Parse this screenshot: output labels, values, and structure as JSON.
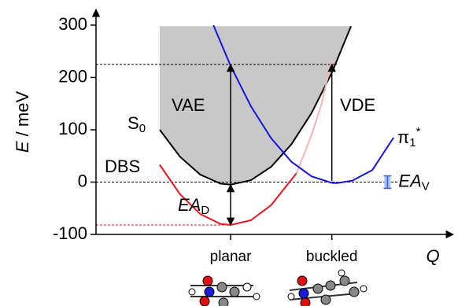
{
  "chart_data": {
    "type": "line",
    "y_label": {
      "text": "E",
      "rest": " / meV"
    },
    "x_label": "Q",
    "xlim": [
      -1.33,
      2.2
    ],
    "ylim": [
      -100,
      330
    ],
    "yticks": [
      -100,
      0,
      100,
      200,
      300
    ],
    "xticks": [
      {
        "value": 0,
        "label": "planar"
      },
      {
        "value": 1,
        "label": "buckled"
      }
    ],
    "series": [
      {
        "label": {
          "text": "S",
          "sub": "0"
        },
        "color": "#000000",
        "fill": "#c8c8c8",
        "x": [
          -0.7,
          -0.5,
          -0.3,
          -0.1,
          0,
          0.2,
          0.4,
          0.6,
          0.8,
          1.0,
          1.19
        ],
        "values": [
          100,
          48.5,
          14.3,
          -2.9,
          -5,
          3.6,
          29.2,
          72,
          132,
          209,
          298
        ]
      },
      {
        "label": {
          "text": "DBS"
        },
        "color": "#e8141c",
        "x": [
          -0.7,
          -0.5,
          -0.3,
          -0.1,
          0,
          0.2,
          0.4,
          0.65
        ],
        "values": [
          33,
          -23,
          -61,
          -80,
          -82,
          -73,
          -44,
          17
        ]
      },
      {
        "color": "#f6b4b4",
        "x": [
          0.65,
          0.8,
          0.9,
          1.0
        ],
        "values": [
          17,
          90,
          150,
          235
        ]
      },
      {
        "label": {
          "text": "π",
          "sub": "1",
          "sup": "*"
        },
        "color": "#1414dc",
        "x": [
          -0.17,
          0,
          0.2,
          0.4,
          0.6,
          0.8,
          1.0,
          1.05,
          1.2,
          1.4,
          1.61
        ],
        "values": [
          300,
          222,
          145,
          84,
          39,
          11,
          -1.5,
          -2,
          2.6,
          23,
          85
        ]
      }
    ],
    "hlines": [
      {
        "value": 225,
        "to_x": 1.05,
        "color": "#000000"
      },
      {
        "value": 0,
        "to_x": 1.65,
        "color": "#000000"
      },
      {
        "value": -82,
        "to_x": 0,
        "color": "#e8141c"
      }
    ],
    "arrows": [
      {
        "label": {
          "text": "VAE"
        },
        "x": 0,
        "from": -5,
        "to": 225,
        "double": false
      },
      {
        "label": {
          "text": "VDE"
        },
        "x": 1,
        "from": 2,
        "to": 225,
        "double": false
      },
      {
        "label": {
          "text": "EA",
          "sub": "D",
          "italic": true
        },
        "x": 0,
        "from": -5,
        "to": -82,
        "double": true
      }
    ],
    "error_bars": [
      {
        "label": {
          "text": "EA",
          "sub": "V",
          "italic": true
        },
        "x": 1.55,
        "value": 0,
        "error": 12,
        "color": "#3a5fd0"
      }
    ]
  }
}
